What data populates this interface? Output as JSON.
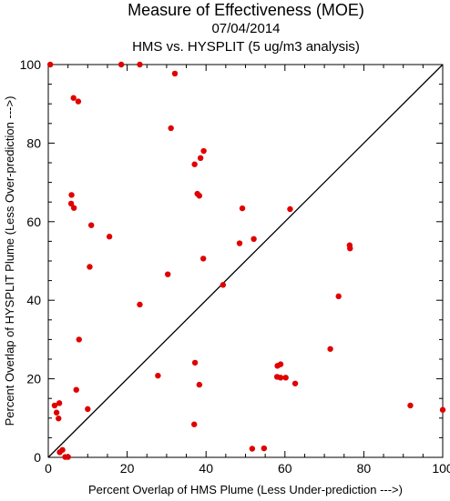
{
  "chart_data": {
    "type": "scatter",
    "title": "Measure of Effectiveness (MOE)",
    "subtitle_date": "07/04/2014",
    "subtitle_analysis": "HMS vs. HYSPLIT  (5 ug/m3 analysis)",
    "xlabel": "Percent Overlap of HMS Plume (Less Under-prediction --->)",
    "ylabel": "Percent Overlap of HYSPLIT Plume (Less Over-prediction --->)",
    "xlim": [
      0,
      100
    ],
    "ylim": [
      0,
      100
    ],
    "x_ticks": [
      "0",
      "20",
      "40",
      "60",
      "80",
      "100"
    ],
    "y_ticks": [
      "0",
      "20",
      "40",
      "60",
      "80",
      "100"
    ],
    "reference_line": "diagonal 1:1",
    "point_color": "#e00000",
    "points": [
      [
        0.5,
        100
      ],
      [
        18.5,
        100
      ],
      [
        23.2,
        100
      ],
      [
        32.1,
        97.7
      ],
      [
        6.4,
        91.5
      ],
      [
        7.6,
        90.6
      ],
      [
        31.1,
        83.8
      ],
      [
        39.4,
        78.0
      ],
      [
        38.6,
        76.2
      ],
      [
        37.1,
        74.6
      ],
      [
        37.8,
        67.1
      ],
      [
        38.3,
        66.6
      ],
      [
        5.9,
        66.8
      ],
      [
        5.8,
        64.6
      ],
      [
        6.5,
        63.5
      ],
      [
        49.2,
        63.4
      ],
      [
        61.3,
        63.2
      ],
      [
        10.9,
        59.1
      ],
      [
        15.5,
        56.2
      ],
      [
        52.1,
        55.6
      ],
      [
        48.5,
        54.5
      ],
      [
        76.4,
        54.0
      ],
      [
        76.5,
        53.2
      ],
      [
        39.3,
        50.6
      ],
      [
        10.5,
        48.5
      ],
      [
        30.3,
        46.6
      ],
      [
        44.3,
        43.9
      ],
      [
        73.6,
        41.0
      ],
      [
        23.2,
        38.9
      ],
      [
        7.8,
        30.0
      ],
      [
        71.5,
        27.6
      ],
      [
        37.2,
        24.1
      ],
      [
        58.9,
        23.7
      ],
      [
        58.1,
        23.3
      ],
      [
        27.8,
        20.8
      ],
      [
        58.0,
        20.5
      ],
      [
        58.9,
        20.3
      ],
      [
        60.2,
        20.3
      ],
      [
        62.6,
        18.8
      ],
      [
        38.3,
        18.5
      ],
      [
        7.1,
        17.2
      ],
      [
        2.8,
        13.8
      ],
      [
        1.6,
        13.2
      ],
      [
        91.8,
        13.2
      ],
      [
        10.0,
        12.3
      ],
      [
        100,
        12.1
      ],
      [
        2.1,
        11.4
      ],
      [
        2.6,
        9.9
      ],
      [
        37.0,
        8.4
      ],
      [
        51.7,
        2.2
      ],
      [
        54.7,
        2.3
      ],
      [
        3.6,
        1.9
      ],
      [
        2.9,
        1.3
      ],
      [
        4.3,
        0.1
      ],
      [
        5.0,
        0.1
      ]
    ]
  }
}
